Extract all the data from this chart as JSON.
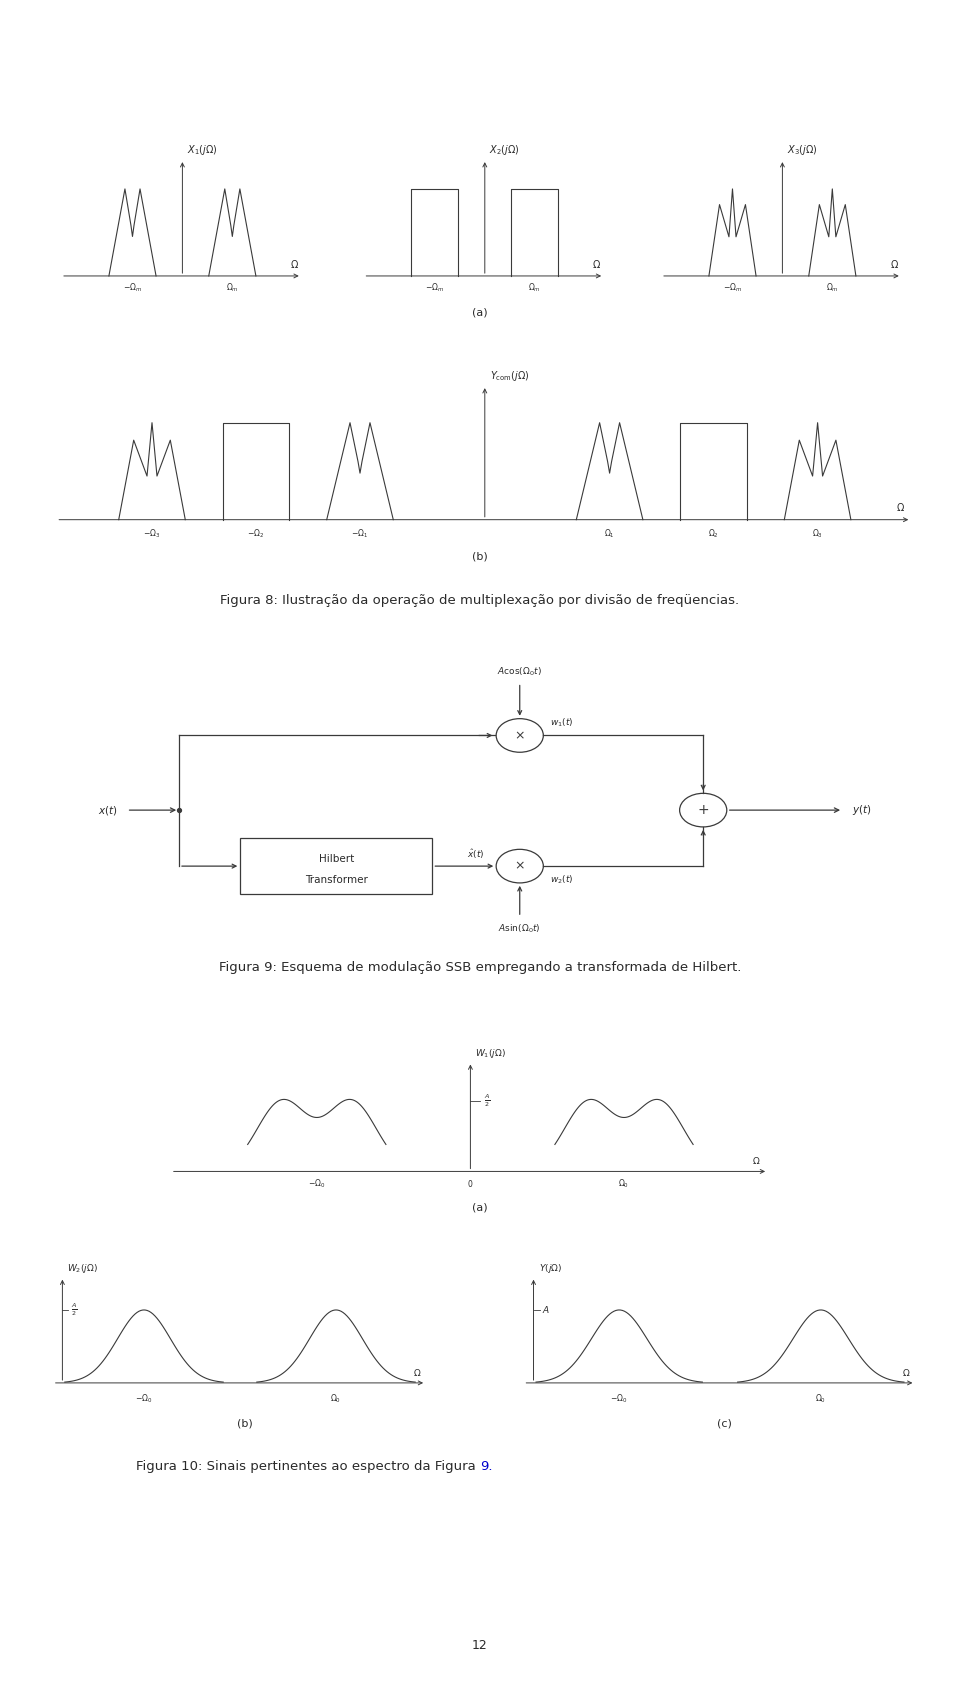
{
  "fig8_caption": "Figura 8: Ilustração da operação de multiplexação por divisão de freqüencias.",
  "fig9_caption": "Figura 9: Esquema de modulação SSB empregando a transformada de Hilbert.",
  "fig10_caption": "Figura 10: Sinais pertinentes ao espectro da Figura 9.",
  "fig10_ref": "9",
  "page_number": "12",
  "bg_color": "#ffffff",
  "line_color": "#3a3a3a",
  "text_color": "#2a2a2a"
}
